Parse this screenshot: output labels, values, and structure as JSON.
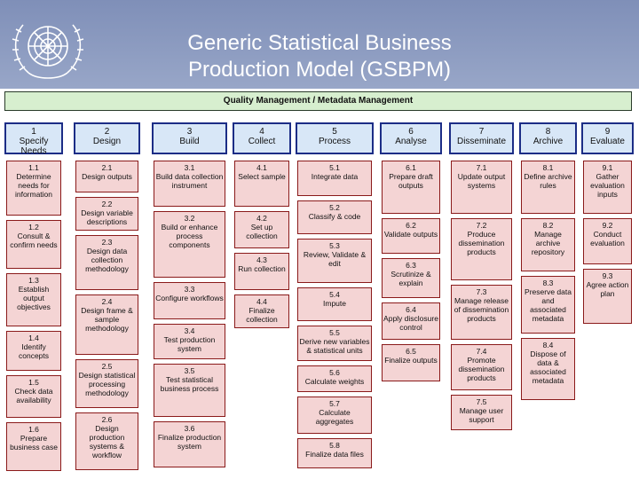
{
  "title": {
    "line1": "Generic Statistical Business",
    "line2": "Production Model (GSBPM)"
  },
  "quality_bar": "Quality Management / Metadata Management",
  "colors": {
    "phase_fill": "#d8e7f7",
    "phase_border": "#1c2d86",
    "subprocess_fill": "#f4d4d4",
    "subprocess_border": "#8a1a1a",
    "quality_fill": "#d7efcf"
  },
  "phases": [
    {
      "num": "1",
      "name": "Specify Needs",
      "subs": [
        {
          "num": "1.1",
          "name": "Determine needs for information"
        },
        {
          "num": "1.2",
          "name": "Consult & confirm needs"
        },
        {
          "num": "1.3",
          "name": "Establish output objectives"
        },
        {
          "num": "1.4",
          "name": "Identify concepts"
        },
        {
          "num": "1.5",
          "name": "Check data availability"
        },
        {
          "num": "1.6",
          "name": "Prepare business case"
        }
      ]
    },
    {
      "num": "2",
      "name": "Design",
      "subs": [
        {
          "num": "2.1",
          "name": "Design outputs"
        },
        {
          "num": "2.2",
          "name": "Design variable descriptions"
        },
        {
          "num": "2.3",
          "name": "Design data collection methodology"
        },
        {
          "num": "2.4",
          "name": "Design frame & sample methodology"
        },
        {
          "num": "2.5",
          "name": "Design statistical processing methodology"
        },
        {
          "num": "2.6",
          "name": "Design production systems & workflow"
        }
      ]
    },
    {
      "num": "3",
      "name": "Build",
      "subs": [
        {
          "num": "3.1",
          "name": "Build data collection instrument"
        },
        {
          "num": "3.2",
          "name": "Build or enhance process components"
        },
        {
          "num": "3.3",
          "name": "Configure workflows"
        },
        {
          "num": "3.4",
          "name": "Test production system"
        },
        {
          "num": "3.5",
          "name": "Test statistical business process"
        },
        {
          "num": "3.6",
          "name": "Finalize production system"
        }
      ]
    },
    {
      "num": "4",
      "name": "Collect",
      "subs": [
        {
          "num": "4.1",
          "name": "Select sample"
        },
        {
          "num": "4.2",
          "name": "Set up collection"
        },
        {
          "num": "4.3",
          "name": "Run collection"
        },
        {
          "num": "4.4",
          "name": "Finalize collection"
        }
      ]
    },
    {
      "num": "5",
      "name": "Process",
      "subs": [
        {
          "num": "5.1",
          "name": "Integrate data"
        },
        {
          "num": "5.2",
          "name": "Classify & code"
        },
        {
          "num": "5.3",
          "name": "Review, Validate & edit"
        },
        {
          "num": "5.4",
          "name": "Impute"
        },
        {
          "num": "5.5",
          "name": "Derive new variables & statistical units"
        },
        {
          "num": "5.6",
          "name": "Calculate weights"
        },
        {
          "num": "5.7",
          "name": "Calculate aggregates"
        },
        {
          "num": "5.8",
          "name": "Finalize data files"
        }
      ]
    },
    {
      "num": "6",
      "name": "Analyse",
      "subs": [
        {
          "num": "6.1",
          "name": "Prepare draft outputs"
        },
        {
          "num": "6.2",
          "name": "Validate outputs"
        },
        {
          "num": "6.3",
          "name": "Scrutinize & explain"
        },
        {
          "num": "6.4",
          "name": "Apply disclosure control"
        },
        {
          "num": "6.5",
          "name": "Finalize outputs"
        }
      ]
    },
    {
      "num": "7",
      "name": "Disseminate",
      "subs": [
        {
          "num": "7.1",
          "name": "Update output systems"
        },
        {
          "num": "7.2",
          "name": "Produce dissemination products"
        },
        {
          "num": "7.3",
          "name": "Manage release of dissemination products"
        },
        {
          "num": "7.4",
          "name": "Promote dissemination products"
        },
        {
          "num": "7.5",
          "name": "Manage user support"
        }
      ]
    },
    {
      "num": "8",
      "name": "Archive",
      "subs": [
        {
          "num": "8.1",
          "name": "Define archive rules"
        },
        {
          "num": "8.2",
          "name": "Manage archive repository"
        },
        {
          "num": "8.3",
          "name": "Preserve data and associated metadata"
        },
        {
          "num": "8.4",
          "name": "Dispose of data & associated metadata"
        }
      ]
    },
    {
      "num": "9",
      "name": "Evaluate",
      "subs": [
        {
          "num": "9.1",
          "name": "Gather evaluation inputs"
        },
        {
          "num": "9.2",
          "name": "Conduct evaluation"
        },
        {
          "num": "9.3",
          "name": "Agree action plan"
        }
      ]
    }
  ]
}
